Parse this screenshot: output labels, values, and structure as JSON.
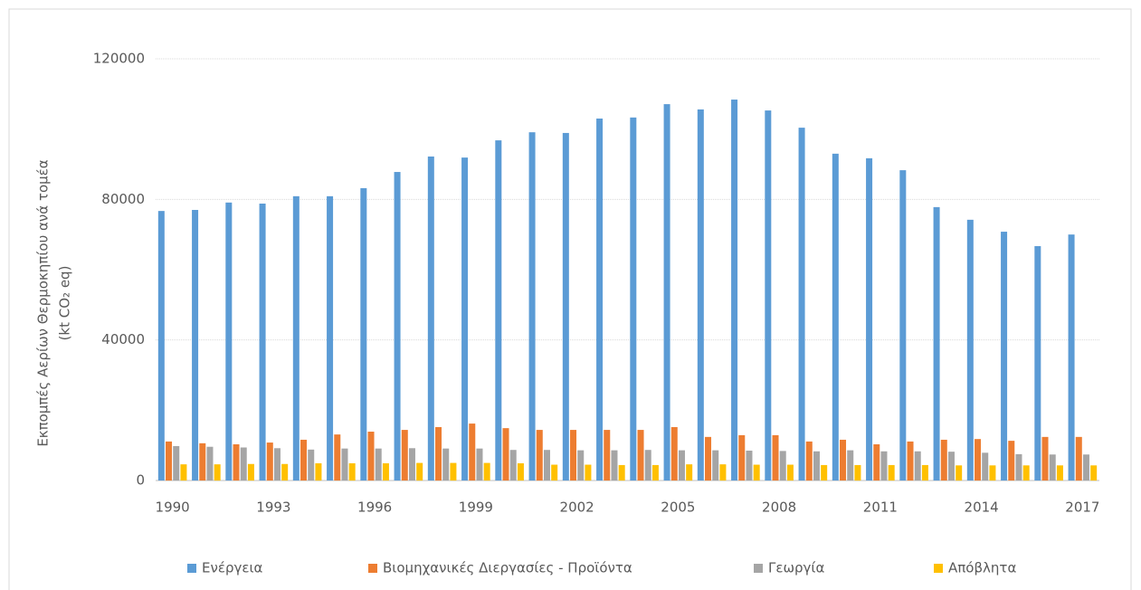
{
  "chart_data": {
    "type": "bar",
    "y_label": [
      "Εκπομπές Αερίων Θερμοκηπίου ανά τομέα",
      "(kt CO₂ eq)"
    ],
    "categories": [
      "1990",
      null,
      null,
      "1993",
      null,
      null,
      "1996",
      null,
      null,
      "1999",
      null,
      null,
      "2002",
      null,
      null,
      "2005",
      null,
      null,
      "2008",
      null,
      null,
      "2011",
      null,
      null,
      "2014",
      null,
      null,
      "2017"
    ],
    "series": [
      {
        "name": "Ενέργεια",
        "color": "#5b9bd5",
        "values": [
          76700,
          77000,
          79100,
          78800,
          80900,
          80900,
          83200,
          87800,
          92200,
          91900,
          96800,
          99100,
          98900,
          103000,
          103300,
          107100,
          105600,
          108400,
          105300,
          100400,
          93000,
          91700,
          88300,
          77800,
          74200,
          70800,
          66700,
          70000
        ]
      },
      {
        "name": "Βιομηχανικές Διεργασίες - Προϊόντα",
        "color": "#ed7d31",
        "values": [
          11100,
          10600,
          10300,
          10800,
          11600,
          13100,
          13900,
          14400,
          15200,
          16200,
          14900,
          14400,
          14400,
          14400,
          14400,
          15200,
          12400,
          12900,
          12900,
          11100,
          11600,
          10300,
          11100,
          11600,
          11800,
          11300,
          12400,
          12400
        ]
      },
      {
        "name": "Γεωργία",
        "color": "#a5a5a5",
        "values": [
          9800,
          9600,
          9400,
          9200,
          8800,
          9100,
          9100,
          9200,
          9100,
          9100,
          8700,
          8700,
          8600,
          8600,
          8700,
          8600,
          8600,
          8500,
          8400,
          8300,
          8600,
          8300,
          8300,
          8200,
          7900,
          7500,
          7400,
          7400
        ]
      },
      {
        "name": "Απόβλητα",
        "color": "#ffc000",
        "values": [
          4600,
          4600,
          4700,
          4700,
          4900,
          4900,
          4900,
          5000,
          5000,
          5000,
          4900,
          4500,
          4500,
          4400,
          4400,
          4600,
          4600,
          4500,
          4500,
          4400,
          4400,
          4400,
          4400,
          4300,
          4300,
          4300,
          4300,
          4300
        ]
      }
    ],
    "ylim": [
      0,
      120000
    ],
    "yticks": [
      0,
      40000,
      80000,
      120000
    ],
    "grid": true,
    "legend": "bottom"
  }
}
